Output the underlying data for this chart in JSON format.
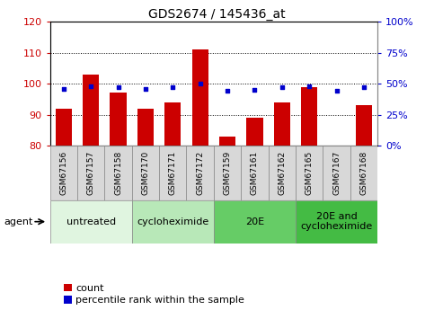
{
  "title": "GDS2674 / 145436_at",
  "samples": [
    "GSM67156",
    "GSM67157",
    "GSM67158",
    "GSM67170",
    "GSM67171",
    "GSM67172",
    "GSM67159",
    "GSM67161",
    "GSM67162",
    "GSM67165",
    "GSM67167",
    "GSM67168"
  ],
  "count": [
    92,
    103,
    97,
    92,
    94,
    111,
    83,
    89,
    94,
    99,
    80,
    93
  ],
  "percentile": [
    46,
    48,
    47,
    46,
    47,
    50,
    44,
    45,
    47,
    48,
    44,
    47
  ],
  "ylim_left": [
    80,
    120
  ],
  "ylim_right": [
    0,
    100
  ],
  "yticks_left": [
    80,
    90,
    100,
    110,
    120
  ],
  "yticks_right": [
    0,
    25,
    50,
    75,
    100
  ],
  "ytick_labels_right": [
    "0%",
    "25%",
    "50%",
    "75%",
    "100%"
  ],
  "bar_color": "#cc0000",
  "dot_color": "#0000cc",
  "bar_baseline": 80,
  "groups": [
    {
      "label": "untreated",
      "start": 0,
      "end": 3,
      "color": "#e0f5e0"
    },
    {
      "label": "cycloheximide",
      "start": 3,
      "end": 6,
      "color": "#b8e8b8"
    },
    {
      "label": "20E",
      "start": 6,
      "end": 9,
      "color": "#66cc66"
    },
    {
      "label": "20E and\ncycloheximide",
      "start": 9,
      "end": 12,
      "color": "#44bb44"
    }
  ],
  "agent_label": "agent",
  "legend_count_label": "count",
  "legend_pct_label": "percentile rank within the sample",
  "bar_color_left": "#cc0000",
  "tick_label_color_left": "#cc0000",
  "tick_label_color_right": "#0000cc",
  "title_fontsize": 10,
  "tick_fontsize": 8,
  "group_label_fontsize": 8,
  "legend_fontsize": 8,
  "sample_box_color": "#d8d8d8"
}
